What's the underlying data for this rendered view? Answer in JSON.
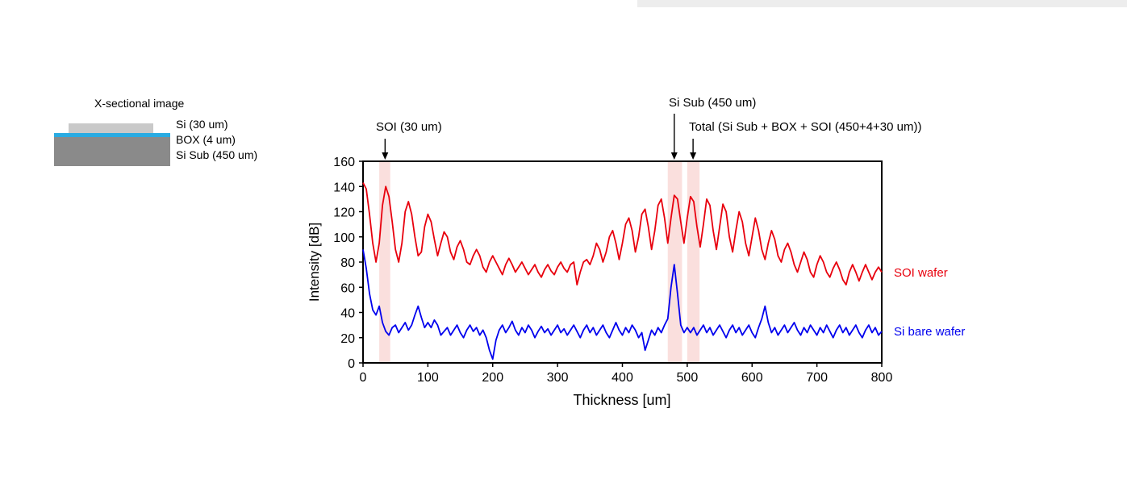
{
  "diagram": {
    "title": "X-sectional image",
    "layers": [
      {
        "name": "si",
        "label": "Si (30 um)",
        "color": "#c9c9c9"
      },
      {
        "name": "box",
        "label": "BOX (4 um)",
        "color": "#29abe2"
      },
      {
        "name": "sisub",
        "label": "Si Sub (450 um)",
        "color": "#8a8a8a"
      }
    ]
  },
  "chart_data": {
    "type": "line",
    "title": "",
    "xlabel": "Thickness [um]",
    "ylabel": "Intensity [dB]",
    "xlim": [
      0,
      800
    ],
    "ylim": [
      0,
      160
    ],
    "x_ticks": [
      0,
      100,
      200,
      300,
      400,
      500,
      600,
      700,
      800
    ],
    "y_ticks": [
      0,
      20,
      40,
      60,
      80,
      100,
      120,
      140,
      160
    ],
    "grid": false,
    "legend_position": "right-outside",
    "x_start": 0,
    "x_step": 5,
    "series": [
      {
        "name": "SOI wafer",
        "color": "#e8000d",
        "values": [
          143,
          138,
          118,
          95,
          80,
          95,
          125,
          140,
          132,
          112,
          90,
          80,
          95,
          120,
          128,
          118,
          100,
          85,
          88,
          108,
          118,
          112,
          98,
          85,
          95,
          104,
          100,
          88,
          82,
          92,
          97,
          90,
          80,
          78,
          85,
          90,
          85,
          76,
          72,
          80,
          85,
          80,
          75,
          70,
          78,
          83,
          78,
          72,
          76,
          80,
          75,
          70,
          74,
          78,
          72,
          68,
          74,
          78,
          73,
          70,
          76,
          80,
          75,
          72,
          78,
          80,
          62,
          72,
          80,
          82,
          78,
          85,
          95,
          90,
          80,
          88,
          100,
          105,
          95,
          82,
          95,
          110,
          115,
          105,
          88,
          100,
          118,
          122,
          108,
          90,
          105,
          125,
          130,
          115,
          95,
          115,
          133,
          130,
          112,
          95,
          115,
          132,
          128,
          108,
          92,
          110,
          130,
          125,
          105,
          90,
          108,
          126,
          120,
          100,
          88,
          105,
          120,
          112,
          95,
          85,
          100,
          115,
          105,
          90,
          82,
          95,
          105,
          98,
          85,
          80,
          90,
          95,
          88,
          78,
          72,
          80,
          88,
          82,
          72,
          68,
          78,
          85,
          80,
          72,
          68,
          75,
          80,
          74,
          66,
          62,
          72,
          78,
          72,
          65,
          72,
          78,
          72,
          66,
          72,
          76,
          72
        ]
      },
      {
        "name": "Si bare wafer",
        "color": "#0000ee",
        "values": [
          90,
          75,
          55,
          42,
          38,
          45,
          32,
          25,
          22,
          28,
          30,
          24,
          28,
          32,
          26,
          30,
          38,
          45,
          36,
          28,
          32,
          28,
          34,
          30,
          22,
          25,
          28,
          22,
          26,
          30,
          24,
          20,
          26,
          30,
          25,
          28,
          22,
          26,
          20,
          10,
          3,
          18,
          26,
          30,
          24,
          28,
          33,
          26,
          22,
          28,
          24,
          30,
          26,
          20,
          25,
          29,
          24,
          27,
          22,
          26,
          30,
          24,
          27,
          22,
          26,
          30,
          25,
          20,
          26,
          30,
          24,
          28,
          22,
          26,
          30,
          24,
          20,
          26,
          32,
          26,
          22,
          28,
          24,
          30,
          26,
          20,
          24,
          10,
          18,
          26,
          22,
          28,
          24,
          30,
          35,
          60,
          78,
          55,
          30,
          24,
          28,
          24,
          28,
          22,
          26,
          30,
          24,
          28,
          22,
          26,
          30,
          25,
          20,
          26,
          30,
          24,
          28,
          22,
          26,
          30,
          24,
          20,
          28,
          35,
          45,
          32,
          24,
          28,
          22,
          26,
          30,
          24,
          28,
          32,
          26,
          22,
          28,
          24,
          30,
          26,
          22,
          28,
          24,
          30,
          25,
          20,
          26,
          30,
          24,
          28,
          22,
          26,
          30,
          24,
          20,
          26,
          30,
          24,
          28,
          22,
          25
        ]
      }
    ],
    "highlight_bands": [
      {
        "x0": 25,
        "x1": 42,
        "color": "#f5b8b3",
        "opacity": 0.45
      },
      {
        "x0": 470,
        "x1": 492,
        "color": "#f5b8b3",
        "opacity": 0.45
      },
      {
        "x0": 500,
        "x1": 519,
        "color": "#f5b8b3",
        "opacity": 0.45
      }
    ],
    "annotations": [
      {
        "label": "SOI (30 um)",
        "x": 34,
        "arrow_top": 52
      },
      {
        "label": "Si Sub (450 um)",
        "x": 480,
        "arrow_top": 21
      },
      {
        "label": "Total (Si Sub + BOX + SOI (450+4+30 um))",
        "x": 509,
        "arrow_top": 52
      }
    ]
  }
}
